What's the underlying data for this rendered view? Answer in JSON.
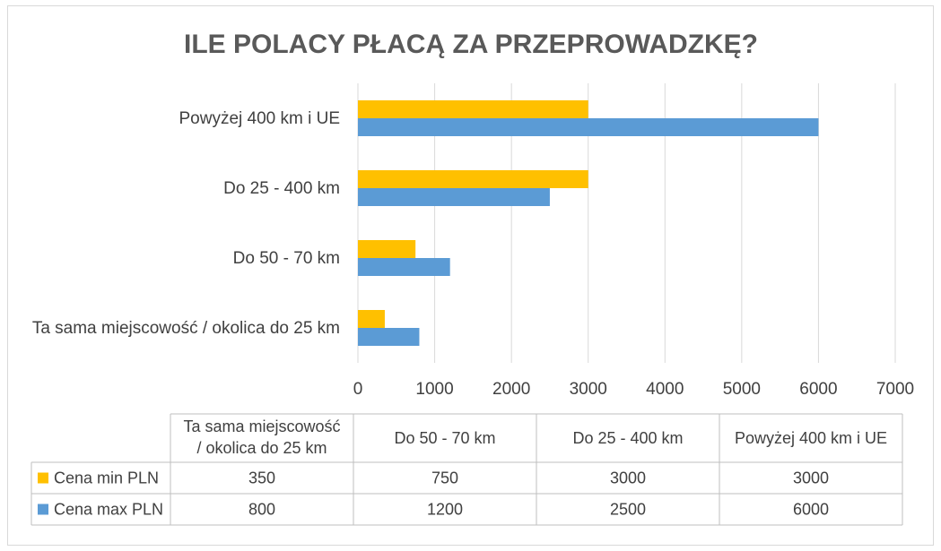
{
  "chart_data": {
    "type": "bar",
    "orientation": "horizontal",
    "title": "ILE POLACY PŁACĄ ZA PRZEPROWADZKĘ?",
    "categories": [
      "Ta sama miejscowość / okolica do 25 km",
      "Do 50 - 70  km",
      "Do 25 - 400 km",
      "Powyżej 400 km i UE"
    ],
    "table_headers": [
      [
        "Ta sama miejscowość",
        "/ okolica do 25 km"
      ],
      [
        "Do 50 - 70  km"
      ],
      [
        "Do 25 - 400 km"
      ],
      [
        "Powyżej 400 km i UE"
      ]
    ],
    "series": [
      {
        "name": "Cena min PLN",
        "values": [
          350,
          750,
          3000,
          3000
        ],
        "color": "#FFC000"
      },
      {
        "name": "Cena max PLN",
        "values": [
          800,
          1200,
          2500,
          6000
        ],
        "color": "#5B9BD5"
      }
    ],
    "xlim": [
      0,
      7000
    ],
    "xticks": [
      0,
      1000,
      2000,
      3000,
      4000,
      5000,
      6000,
      7000
    ],
    "grid": true,
    "data_table": true
  }
}
